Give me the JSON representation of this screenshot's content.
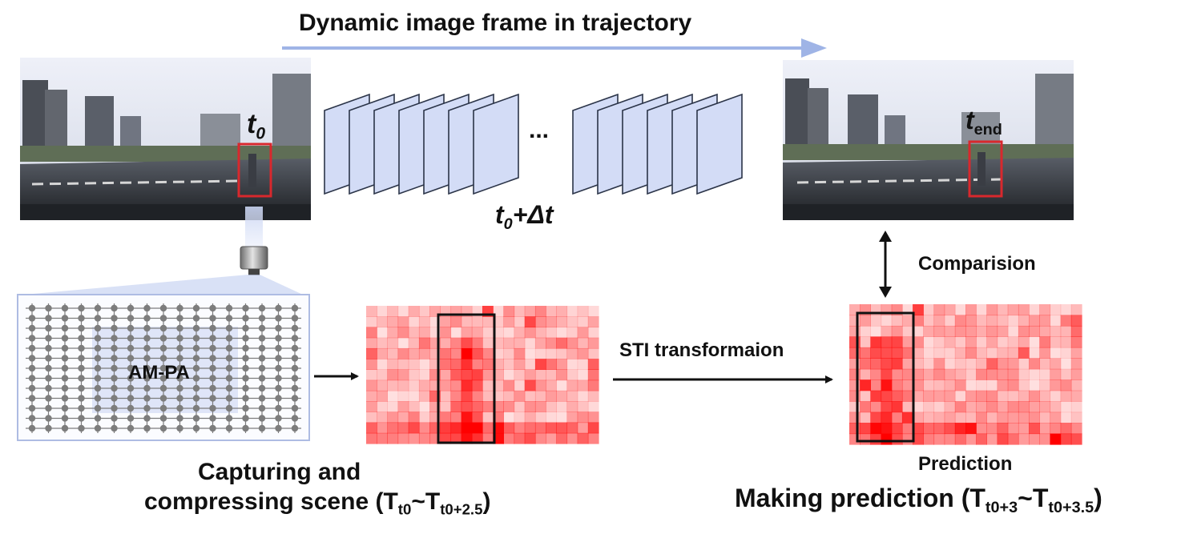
{
  "top_title": "Dynamic image frame in trajectory",
  "start_frame": {
    "label_main": "t",
    "label_sub": "0"
  },
  "end_frame": {
    "label_main": "t",
    "label_sub": "end"
  },
  "mid_label": {
    "main": "t",
    "sub": "0",
    "rest": "+Δt"
  },
  "ellipsis": "...",
  "comparison_label": "Comparision",
  "sensor_panel_label": "AM-PA",
  "transform_label": "STI transformaion",
  "prediction_label": "Prediction",
  "left_caption": {
    "line1": "Capturing and",
    "line2_main": "compressing scene (T",
    "line2_sub1": "t0",
    "line2_mid": "~T",
    "line2_sub2": "t0+2.5",
    "line2_end": ")"
  },
  "right_caption": {
    "main": "Making prediction (T",
    "sub1": "t0+3",
    "mid": "~T",
    "sub2": "t0+3.5",
    "end": ")"
  },
  "colors": {
    "trajectory_arrow": "#9fb4e6",
    "frame_fill": "#d3dcf6",
    "frame_stroke": "#2b3448",
    "bbox": "#d8282d",
    "heat_base": "#ff0000",
    "grid": "#7d7d7d"
  }
}
